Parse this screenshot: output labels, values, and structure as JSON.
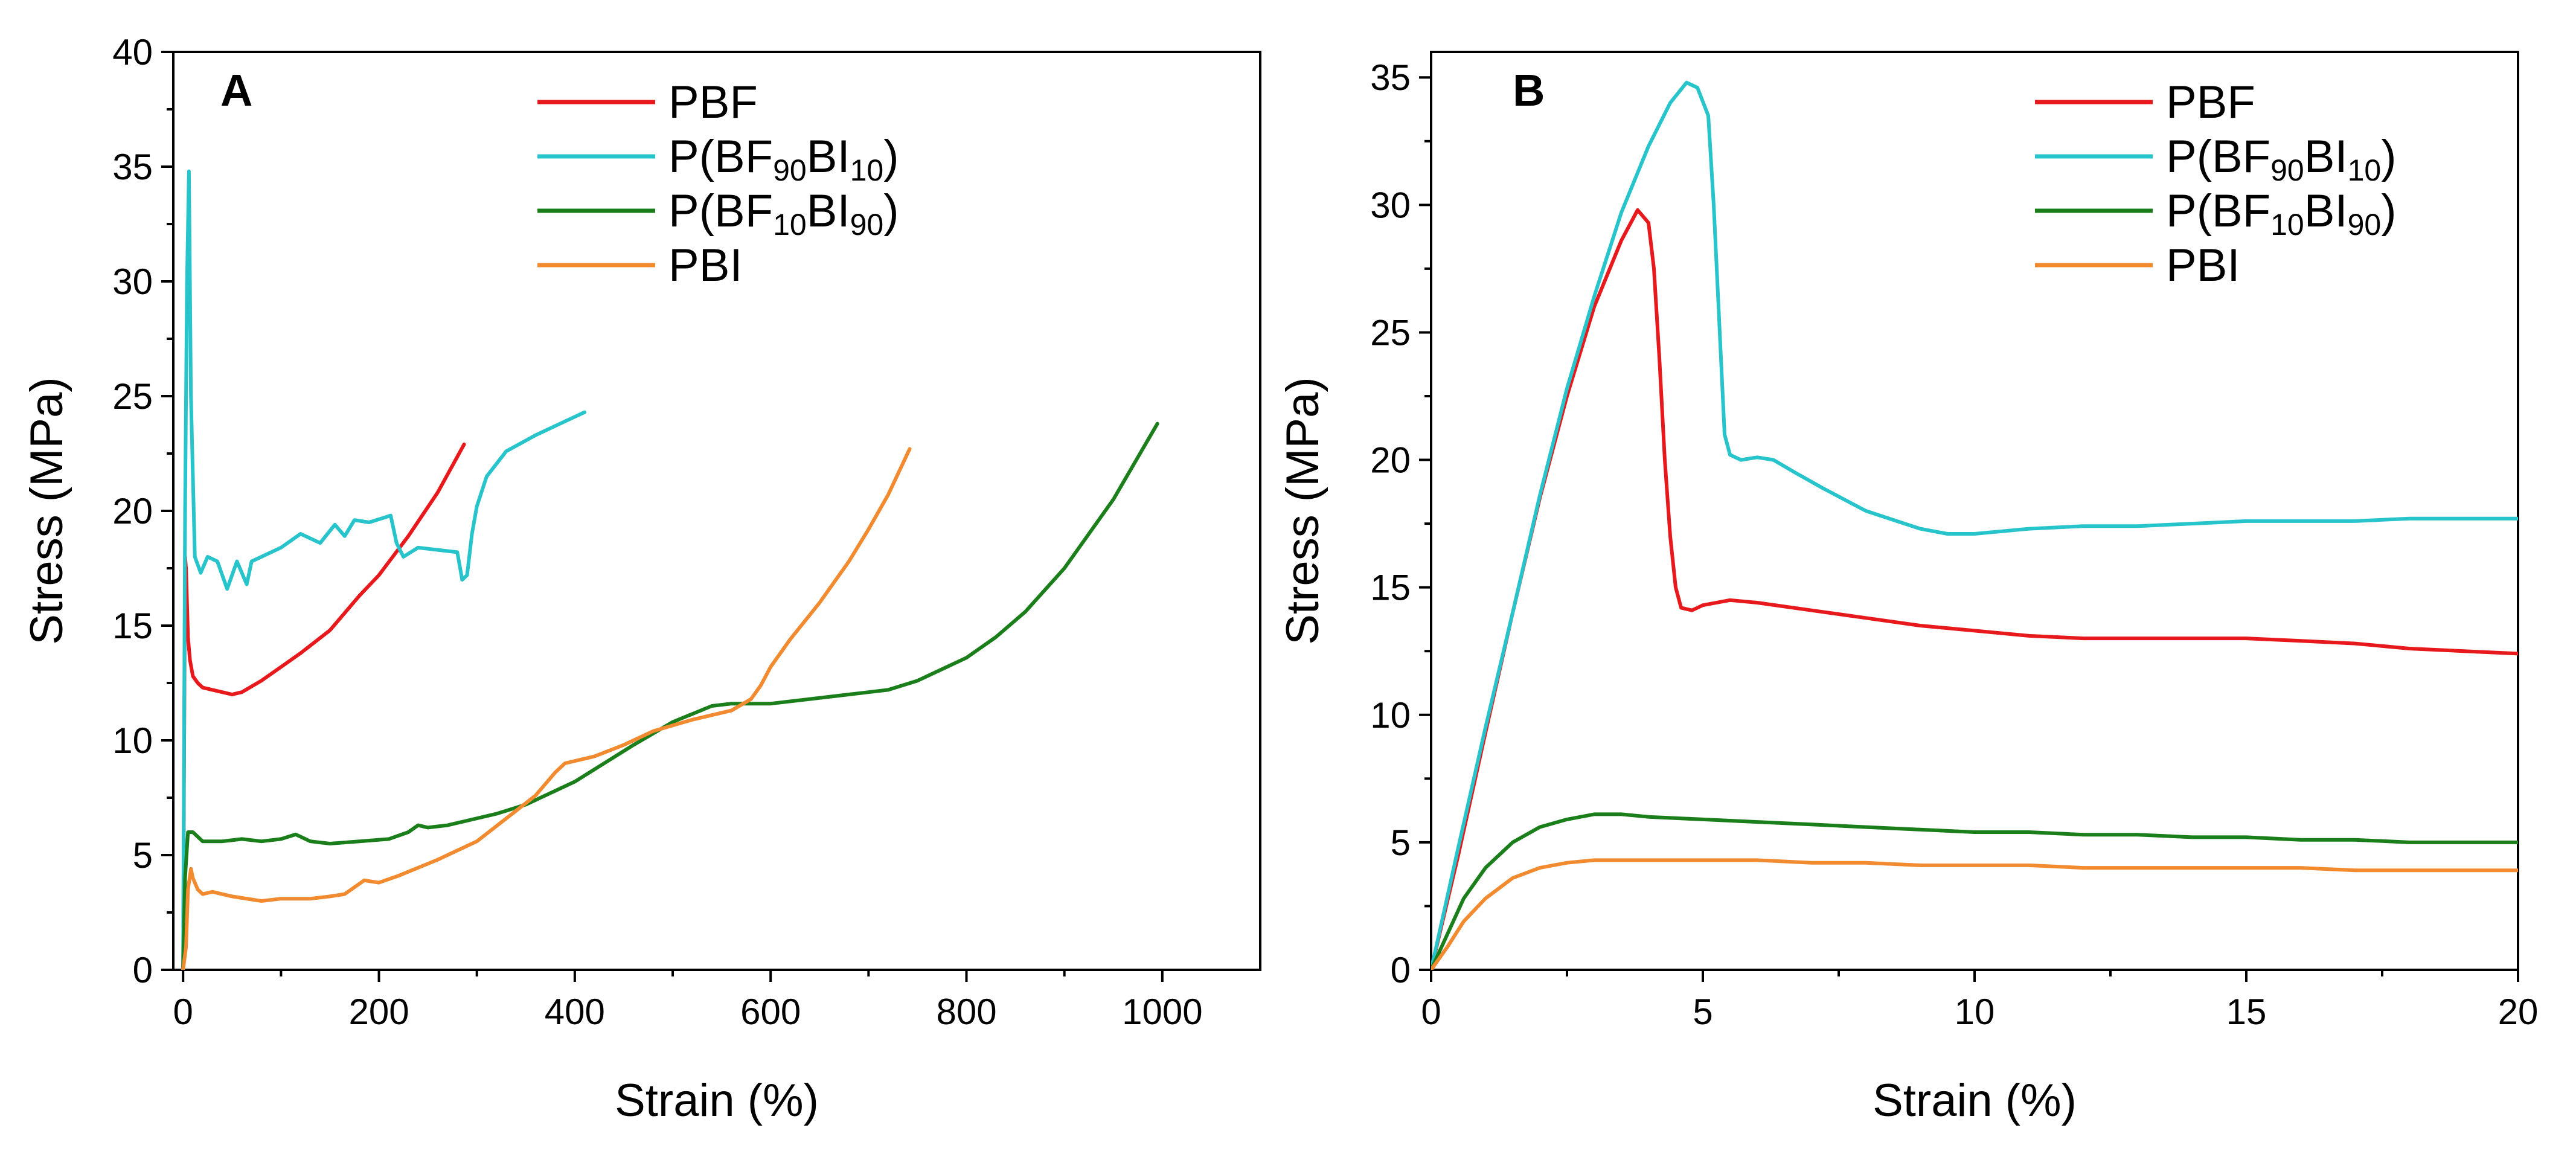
{
  "chart_data": [
    {
      "panel": "A",
      "type": "line",
      "xlabel": "Strain (%)",
      "ylabel": "Stress (MPa)",
      "xlim": [
        -10,
        1100
      ],
      "ylim": [
        0,
        40
      ],
      "xticks": [
        0,
        200,
        400,
        600,
        800,
        1000
      ],
      "yticks": [
        0,
        5,
        10,
        15,
        20,
        25,
        30,
        35,
        40
      ],
      "legend_position": "top-center",
      "series": [
        {
          "name": "PBF",
          "label_parts": [
            [
              "PBF",
              ""
            ]
          ],
          "color": "#e8191c",
          "x": [
            0,
            2,
            3,
            5,
            7,
            10,
            15,
            20,
            30,
            40,
            50,
            60,
            80,
            100,
            120,
            150,
            180,
            200,
            230,
            260,
            287
          ],
          "y": [
            0,
            18,
            17.5,
            14.5,
            13.5,
            12.8,
            12.5,
            12.3,
            12.2,
            12.1,
            12.0,
            12.1,
            12.6,
            13.2,
            13.8,
            14.8,
            16.3,
            17.2,
            18.9,
            20.8,
            22.9
          ]
        },
        {
          "name": "P(BF90BI10)",
          "label_parts": [
            [
              "P(BF",
              ""
            ],
            [
              "90",
              "sub"
            ],
            [
              "BI",
              ""
            ],
            [
              "10",
              "sub"
            ],
            [
              ")",
              ""
            ]
          ],
          "color": "#27c4cc",
          "x": [
            0,
            2,
            4,
            6,
            8,
            12,
            18,
            25,
            35,
            45,
            50,
            55,
            65,
            70,
            80,
            100,
            120,
            140,
            155,
            165,
            175,
            190,
            205,
            212,
            218,
            225,
            240,
            260,
            280,
            285,
            290,
            295,
            300,
            310,
            330,
            360,
            390,
            410
          ],
          "y": [
            0,
            20,
            30,
            34.8,
            25,
            18,
            17.3,
            18.0,
            17.8,
            16.6,
            17.2,
            17.8,
            16.8,
            17.8,
            18.0,
            18.4,
            19.0,
            18.6,
            19.4,
            18.9,
            19.6,
            19.5,
            19.7,
            19.8,
            18.6,
            18.0,
            18.4,
            18.3,
            18.2,
            17.0,
            17.2,
            19.0,
            20.2,
            21.5,
            22.6,
            23.3,
            23.9,
            24.3
          ]
        },
        {
          "name": "P(BF10BI90)",
          "label_parts": [
            [
              "P(BF",
              ""
            ],
            [
              "10",
              "sub"
            ],
            [
              "BI",
              ""
            ],
            [
              "90",
              "sub"
            ],
            [
              ")",
              ""
            ]
          ],
          "color": "#1a7f1a",
          "x": [
            0,
            2,
            5,
            10,
            20,
            40,
            60,
            80,
            100,
            115,
            130,
            150,
            180,
            210,
            230,
            240,
            250,
            270,
            290,
            320,
            350,
            380,
            400,
            430,
            460,
            500,
            540,
            560,
            600,
            640,
            680,
            700,
            720,
            750,
            780,
            800,
            830,
            860,
            900,
            950,
            995
          ],
          "y": [
            0,
            4,
            6.0,
            6.0,
            5.6,
            5.6,
            5.7,
            5.6,
            5.7,
            5.9,
            5.6,
            5.5,
            5.6,
            5.7,
            6.0,
            6.3,
            6.2,
            6.3,
            6.5,
            6.8,
            7.2,
            7.8,
            8.2,
            9.0,
            9.8,
            10.8,
            11.5,
            11.6,
            11.6,
            11.8,
            12.0,
            12.1,
            12.2,
            12.6,
            13.2,
            13.6,
            14.5,
            15.6,
            17.5,
            20.5,
            23.8
          ]
        },
        {
          "name": "PBI",
          "label_parts": [
            [
              "PBI",
              ""
            ]
          ],
          "color": "#f28a30",
          "x": [
            0,
            3,
            5,
            8,
            10,
            15,
            20,
            30,
            50,
            80,
            100,
            130,
            150,
            165,
            175,
            185,
            200,
            220,
            260,
            300,
            330,
            360,
            380,
            390,
            400,
            420,
            450,
            480,
            520,
            560,
            580,
            590,
            600,
            620,
            650,
            680,
            700,
            720,
            742
          ],
          "y": [
            0,
            1,
            3.5,
            4.4,
            4.0,
            3.5,
            3.3,
            3.4,
            3.2,
            3.0,
            3.1,
            3.1,
            3.2,
            3.3,
            3.6,
            3.9,
            3.8,
            4.1,
            4.8,
            5.6,
            6.6,
            7.6,
            8.6,
            9.0,
            9.1,
            9.3,
            9.8,
            10.4,
            10.9,
            11.3,
            11.8,
            12.4,
            13.2,
            14.4,
            16.0,
            17.8,
            19.2,
            20.7,
            22.7
          ]
        }
      ]
    },
    {
      "panel": "B",
      "type": "line",
      "xlabel": "Strain (%)",
      "ylabel": "Stress (MPa)",
      "xlim": [
        0,
        20
      ],
      "ylim": [
        0,
        36
      ],
      "xticks": [
        0,
        5,
        10,
        15,
        20
      ],
      "yticks": [
        0,
        5,
        10,
        15,
        20,
        25,
        30,
        35
      ],
      "legend_position": "top-right",
      "series": [
        {
          "name": "PBF",
          "label_parts": [
            [
              "PBF",
              ""
            ]
          ],
          "color": "#e8191c",
          "x": [
            0,
            0.5,
            1,
            1.5,
            2,
            2.5,
            3,
            3.5,
            3.8,
            4.0,
            4.1,
            4.2,
            4.3,
            4.4,
            4.5,
            4.6,
            4.8,
            5.0,
            5.5,
            6,
            7,
            8,
            9,
            10,
            11,
            12,
            13,
            14,
            15,
            16,
            17,
            18,
            19,
            20
          ],
          "y": [
            0,
            4.5,
            9.3,
            14.0,
            18.5,
            22.5,
            26.0,
            28.6,
            29.8,
            29.3,
            27.5,
            24.0,
            20.0,
            17.0,
            15.0,
            14.2,
            14.1,
            14.3,
            14.5,
            14.4,
            14.1,
            13.8,
            13.5,
            13.3,
            13.1,
            13.0,
            13.0,
            13.0,
            13.0,
            12.9,
            12.8,
            12.6,
            12.5,
            12.4
          ]
        },
        {
          "name": "P(BF90BI10)",
          "label_parts": [
            [
              "P(BF",
              ""
            ],
            [
              "90",
              "sub"
            ],
            [
              "BI",
              ""
            ],
            [
              "10",
              "sub"
            ],
            [
              ")",
              ""
            ]
          ],
          "color": "#27c4cc",
          "x": [
            0,
            0.5,
            1,
            1.5,
            2,
            2.5,
            3,
            3.5,
            4,
            4.4,
            4.7,
            4.9,
            5.1,
            5.2,
            5.3,
            5.4,
            5.5,
            5.7,
            6,
            6.3,
            6.7,
            7.2,
            8,
            9,
            9.5,
            10,
            11,
            12,
            13,
            14,
            15,
            16,
            17,
            18,
            19,
            20
          ],
          "y": [
            0,
            4.8,
            9.5,
            14.0,
            18.6,
            22.8,
            26.4,
            29.7,
            32.3,
            34.0,
            34.8,
            34.6,
            33.5,
            30.0,
            25.5,
            21.0,
            20.2,
            20.0,
            20.1,
            20.0,
            19.5,
            18.9,
            18.0,
            17.3,
            17.1,
            17.1,
            17.3,
            17.4,
            17.4,
            17.5,
            17.6,
            17.6,
            17.6,
            17.7,
            17.7,
            17.7
          ]
        },
        {
          "name": "P(BF10BI90)",
          "label_parts": [
            [
              "P(BF",
              ""
            ],
            [
              "10",
              "sub"
            ],
            [
              "BI",
              ""
            ],
            [
              "90",
              "sub"
            ],
            [
              ")",
              ""
            ]
          ],
          "color": "#1a7f1a",
          "x": [
            0,
            0.3,
            0.6,
            1.0,
            1.5,
            2.0,
            2.5,
            3.0,
            3.5,
            4.0,
            5,
            6,
            7,
            8,
            9,
            10,
            11,
            12,
            13,
            14,
            15,
            16,
            17,
            18,
            19,
            20
          ],
          "y": [
            0,
            1.4,
            2.8,
            4.0,
            5.0,
            5.6,
            5.9,
            6.1,
            6.1,
            6.0,
            5.9,
            5.8,
            5.7,
            5.6,
            5.5,
            5.4,
            5.4,
            5.3,
            5.3,
            5.2,
            5.2,
            5.1,
            5.1,
            5.0,
            5.0,
            5.0
          ]
        },
        {
          "name": "PBI",
          "label_parts": [
            [
              "PBI",
              ""
            ]
          ],
          "color": "#f28a30",
          "x": [
            0,
            0.3,
            0.6,
            1.0,
            1.5,
            2.0,
            2.5,
            3.0,
            3.5,
            4.0,
            5,
            6,
            7,
            8,
            9,
            10,
            11,
            12,
            13,
            14,
            15,
            16,
            17,
            18,
            19,
            20
          ],
          "y": [
            0,
            0.9,
            1.9,
            2.8,
            3.6,
            4.0,
            4.2,
            4.3,
            4.3,
            4.3,
            4.3,
            4.3,
            4.2,
            4.2,
            4.1,
            4.1,
            4.1,
            4.0,
            4.0,
            4.0,
            4.0,
            4.0,
            3.9,
            3.9,
            3.9,
            3.9
          ]
        }
      ]
    }
  ]
}
